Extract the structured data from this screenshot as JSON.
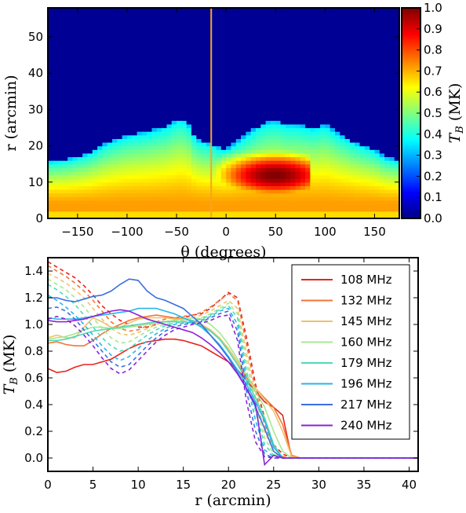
{
  "chart_data": [
    {
      "type": "heatmap",
      "xlabel": "θ (degrees)",
      "ylabel": "r (arcmin)",
      "xlim": [
        -180,
        175
      ],
      "ylim": [
        0,
        58
      ],
      "xticks": [
        -150,
        -100,
        -50,
        0,
        50,
        100,
        150
      ],
      "xtick_labels": [
        "−150",
        "−100",
        "−50",
        "0",
        "50",
        "100",
        "150"
      ],
      "yticks": [
        0,
        10,
        20,
        30,
        40,
        50
      ],
      "yticks_labels": [
        "0",
        "10",
        "20",
        "30",
        "40",
        "50"
      ],
      "colorbar": {
        "label": "T_B (MK)",
        "range": [
          0,
          1
        ],
        "ticks": [
          0,
          0.1,
          0.2,
          0.3,
          0.4,
          0.5,
          0.6,
          0.7,
          0.8,
          0.9,
          1.0
        ],
        "tick_labels": [
          "0.0",
          "0.1",
          "0.2",
          "0.3",
          "0.4",
          "0.5",
          "0.6",
          "0.7",
          "0.8",
          "0.9",
          "1.0"
        ],
        "colormap": "jet"
      },
      "marker_line_theta": -15,
      "marker_line_color": "#f5a623",
      "edge_radius": {
        "theta": [
          -180,
          -160,
          -140,
          -120,
          -100,
          -80,
          -60,
          -48,
          -40,
          -30,
          -20,
          -10,
          0,
          10,
          20,
          30,
          40,
          50,
          60,
          70,
          80,
          90,
          100,
          110,
          120,
          130,
          140,
          150,
          160,
          175
        ],
        "r": [
          16,
          16.5,
          18,
          21,
          23,
          24,
          25.5,
          27.5,
          27,
          22,
          21,
          20,
          19,
          21,
          23,
          25,
          26.5,
          27,
          26,
          26,
          25.5,
          25,
          26,
          24,
          22.5,
          21,
          20,
          19,
          17,
          16
        ]
      },
      "core_region": {
        "theta_range": [
          -45,
          85
        ],
        "r_range": [
          5,
          22
        ],
        "peak_theta": 50,
        "peak_r": 12,
        "peak_value": 0.9
      },
      "baseline_value": 0.72
    },
    {
      "type": "line",
      "xlabel": "r (arcmin)",
      "ylabel": "T_B (MK)",
      "xlim": [
        0,
        41
      ],
      "ylim": [
        -0.1,
        1.5
      ],
      "xticks": [
        0,
        5,
        10,
        15,
        20,
        25,
        30,
        35,
        40
      ],
      "xtick_labels": [
        "0",
        "5",
        "10",
        "15",
        "20",
        "25",
        "30",
        "35",
        "40"
      ],
      "yticks": [
        0,
        0.2,
        0.4,
        0.6,
        0.8,
        1.0,
        1.2,
        1.4
      ],
      "ytick_labels": [
        "0.0",
        "0.2",
        "0.4",
        "0.6",
        "0.8",
        "1.0",
        "1.2",
        "1.4"
      ],
      "legend_position": "top-right",
      "x": [
        0,
        1,
        2,
        3,
        4,
        5,
        6,
        7,
        8,
        9,
        10,
        11,
        12,
        13,
        14,
        15,
        16,
        17,
        18,
        19,
        20,
        21,
        22,
        23,
        24,
        25,
        26,
        27,
        28,
        29,
        30,
        31,
        32,
        33,
        34,
        35,
        36,
        37,
        38,
        39,
        40,
        41
      ],
      "series": [
        {
          "name": "108 MHz",
          "color": "#e8241c",
          "solid": [
            0.67,
            0.64,
            0.65,
            0.68,
            0.7,
            0.7,
            0.72,
            0.74,
            0.78,
            0.82,
            0.85,
            0.87,
            0.88,
            0.89,
            0.89,
            0.88,
            0.86,
            0.84,
            0.8,
            0.76,
            0.72,
            0.66,
            0.58,
            0.5,
            0.42,
            0.38,
            0.32,
            0.0,
            0,
            0,
            0,
            0,
            0,
            0,
            0,
            0,
            0,
            0,
            0,
            0,
            0,
            0
          ],
          "dashed": [
            1.47,
            1.43,
            1.39,
            1.35,
            1.29,
            1.22,
            1.14,
            1.08,
            1.03,
            1.0,
            0.98,
            0.98,
            1.0,
            1.02,
            1.03,
            1.05,
            1.07,
            1.08,
            1.12,
            1.18,
            1.24,
            1.2,
            0.9,
            0.55,
            0.3,
            0.1,
            0.03,
            0.0,
            0,
            0,
            0,
            0,
            0,
            0,
            0,
            0,
            0,
            0,
            0,
            0,
            0,
            0
          ]
        },
        {
          "name": "132 MHz",
          "color": "#f2753a",
          "solid": [
            0.86,
            0.87,
            0.85,
            0.84,
            0.84,
            0.88,
            0.93,
            0.97,
            1.0,
            1.03,
            1.05,
            1.06,
            1.07,
            1.06,
            1.05,
            1.04,
            1.03,
            1.0,
            0.95,
            0.9,
            0.8,
            0.7,
            0.6,
            0.52,
            0.45,
            0.38,
            0.25,
            0.02,
            0,
            0,
            0,
            0,
            0,
            0,
            0,
            0,
            0,
            0,
            0,
            0,
            0,
            0
          ],
          "dashed": [
            1.44,
            1.4,
            1.36,
            1.31,
            1.25,
            1.18,
            1.1,
            1.02,
            0.97,
            0.95,
            0.96,
            0.99,
            1.02,
            1.04,
            1.05,
            1.06,
            1.07,
            1.09,
            1.13,
            1.18,
            1.23,
            1.18,
            0.85,
            0.5,
            0.25,
            0.08,
            0.01,
            0.0,
            0,
            0,
            0,
            0,
            0,
            0,
            0,
            0,
            0,
            0,
            0,
            0,
            0,
            0
          ]
        },
        {
          "name": "145 MHz",
          "color": "#f0c16a",
          "solid": [
            0.9,
            0.92,
            0.9,
            0.9,
            0.98,
            1.05,
            1.02,
            0.98,
            0.98,
            1.01,
            1.04,
            1.05,
            1.05,
            1.05,
            1.04,
            1.04,
            1.03,
            1.0,
            0.96,
            0.9,
            0.82,
            0.72,
            0.62,
            0.52,
            0.44,
            0.35,
            0.2,
            0.01,
            0,
            0,
            0,
            0,
            0,
            0,
            0,
            0,
            0,
            0,
            0,
            0,
            0,
            0
          ],
          "dashed": [
            1.38,
            1.35,
            1.31,
            1.26,
            1.2,
            1.12,
            1.04,
            0.97,
            0.93,
            0.92,
            0.94,
            0.97,
            1.0,
            1.02,
            1.03,
            1.04,
            1.05,
            1.07,
            1.1,
            1.14,
            1.18,
            1.12,
            0.78,
            0.45,
            0.2,
            0.05,
            0.0,
            0.0,
            0,
            0,
            0,
            0,
            0,
            0,
            0,
            0,
            0,
            0,
            0,
            0,
            0,
            0
          ]
        },
        {
          "name": "160 MHz",
          "color": "#a6e890",
          "solid": [
            0.89,
            0.9,
            0.91,
            0.93,
            0.96,
            0.98,
            0.98,
            0.97,
            0.97,
            0.98,
            0.99,
            1.0,
            1.01,
            1.02,
            1.03,
            1.04,
            1.05,
            1.04,
            1.0,
            0.94,
            0.85,
            0.74,
            0.62,
            0.5,
            0.38,
            0.2,
            0.05,
            0.0,
            0,
            0,
            0,
            0,
            0,
            0,
            0,
            0,
            0,
            0,
            0,
            0,
            0,
            0
          ],
          "dashed": [
            1.34,
            1.3,
            1.26,
            1.2,
            1.13,
            1.05,
            0.97,
            0.9,
            0.86,
            0.87,
            0.91,
            0.95,
            0.98,
            1.0,
            1.02,
            1.03,
            1.04,
            1.05,
            1.08,
            1.12,
            1.16,
            1.08,
            0.72,
            0.4,
            0.15,
            0.03,
            0.0,
            0.0,
            0,
            0,
            0,
            0,
            0,
            0,
            0,
            0,
            0,
            0,
            0,
            0,
            0,
            0
          ]
        },
        {
          "name": "179 MHz",
          "color": "#4ed9b8",
          "solid": [
            0.88,
            0.88,
            0.89,
            0.91,
            0.93,
            0.95,
            0.96,
            0.97,
            0.98,
            0.99,
            1.0,
            1.01,
            1.02,
            1.02,
            1.02,
            1.02,
            1.01,
            0.99,
            0.95,
            0.89,
            0.8,
            0.7,
            0.58,
            0.45,
            0.3,
            0.1,
            0.0,
            0.0,
            0,
            0,
            0,
            0,
            0,
            0,
            0,
            0,
            0,
            0,
            0,
            0,
            0,
            0
          ],
          "dashed": [
            1.3,
            1.26,
            1.21,
            1.15,
            1.07,
            0.98,
            0.9,
            0.84,
            0.8,
            0.82,
            0.87,
            0.92,
            0.96,
            0.99,
            1.01,
            1.02,
            1.03,
            1.04,
            1.07,
            1.11,
            1.14,
            1.05,
            0.65,
            0.35,
            0.1,
            0.02,
            0.0,
            0.0,
            0,
            0,
            0,
            0,
            0,
            0,
            0,
            0,
            0,
            0,
            0,
            0,
            0,
            0
          ]
        },
        {
          "name": "196 MHz",
          "color": "#29b6e8",
          "solid": [
            1.05,
            1.04,
            1.04,
            1.04,
            1.05,
            1.06,
            1.07,
            1.08,
            1.09,
            1.1,
            1.12,
            1.12,
            1.12,
            1.1,
            1.08,
            1.05,
            1.02,
            0.98,
            0.92,
            0.85,
            0.76,
            0.66,
            0.55,
            0.42,
            0.28,
            0.08,
            0.0,
            0.0,
            0,
            0,
            0,
            0,
            0,
            0,
            0,
            0,
            0,
            0,
            0,
            0,
            0,
            0
          ],
          "dashed": [
            1.22,
            1.18,
            1.13,
            1.07,
            1.0,
            0.92,
            0.84,
            0.77,
            0.73,
            0.76,
            0.82,
            0.88,
            0.93,
            0.97,
            1.0,
            1.01,
            1.02,
            1.03,
            1.06,
            1.1,
            1.12,
            1.0,
            0.58,
            0.28,
            0.06,
            0.01,
            0.0,
            0.0,
            0,
            0,
            0,
            0,
            0,
            0,
            0,
            0,
            0,
            0,
            0,
            0,
            0,
            0
          ]
        },
        {
          "name": "217 MHz",
          "color": "#3a6fe0",
          "solid": [
            1.2,
            1.2,
            1.18,
            1.17,
            1.19,
            1.21,
            1.22,
            1.25,
            1.3,
            1.34,
            1.33,
            1.25,
            1.2,
            1.18,
            1.15,
            1.12,
            1.06,
            1.0,
            0.92,
            0.84,
            0.75,
            0.64,
            0.52,
            0.38,
            0.22,
            0.05,
            0.0,
            0.0,
            0,
            0,
            0,
            0,
            0,
            0,
            0,
            0,
            0,
            0,
            0,
            0,
            0,
            0
          ],
          "dashed": [
            1.12,
            1.13,
            1.1,
            1.04,
            0.96,
            0.88,
            0.8,
            0.72,
            0.68,
            0.7,
            0.77,
            0.84,
            0.9,
            0.95,
            0.98,
            1.0,
            1.01,
            1.02,
            1.05,
            1.08,
            1.1,
            0.95,
            0.5,
            0.2,
            0.03,
            0.0,
            0.0,
            0.0,
            0,
            0,
            0,
            0,
            0,
            0,
            0,
            0,
            0,
            0,
            0,
            0,
            0,
            0
          ]
        },
        {
          "name": "240 MHz",
          "color": "#8b22d8",
          "solid": [
            1.03,
            1.02,
            1.02,
            1.03,
            1.04,
            1.06,
            1.08,
            1.1,
            1.11,
            1.1,
            1.07,
            1.04,
            1.02,
            1.0,
            0.98,
            0.96,
            0.94,
            0.9,
            0.85,
            0.79,
            0.72,
            0.63,
            0.52,
            0.4,
            -0.05,
            0.02,
            0.0,
            0.0,
            0,
            0,
            0,
            0,
            0,
            0,
            0,
            0,
            0,
            0,
            0,
            0,
            0,
            0
          ],
          "dashed": [
            1.04,
            1.06,
            1.04,
            0.99,
            0.92,
            0.84,
            0.75,
            0.67,
            0.63,
            0.66,
            0.73,
            0.8,
            0.87,
            0.92,
            0.96,
            0.98,
            1.0,
            1.01,
            1.03,
            1.06,
            1.07,
            0.88,
            0.42,
            0.12,
            0.01,
            0.0,
            0.0,
            0.0,
            0,
            0,
            0,
            0,
            0,
            0,
            0,
            0,
            0,
            0,
            0,
            0,
            0,
            0
          ]
        }
      ]
    }
  ]
}
